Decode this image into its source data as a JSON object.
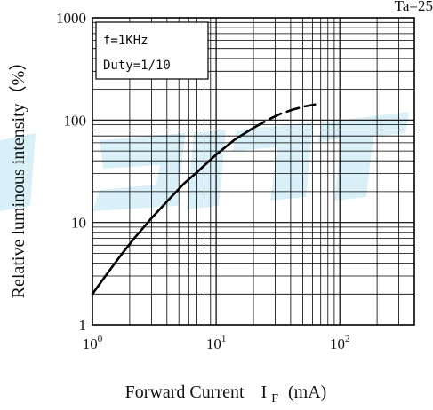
{
  "chart_data": {
    "type": "line",
    "corner_label": "Ta=25",
    "xlabel": "Forward Current",
    "xlabel_symbol": "I",
    "xlabel_subscript": "F",
    "xlabel_unit": "(mA)",
    "ylabel": "Relative luminous intensity（%）",
    "x_scale": "log",
    "y_scale": "log",
    "xlim": [
      1,
      400
    ],
    "ylim": [
      1,
      1000
    ],
    "x_ticks": [
      {
        "value": 1,
        "base": "10",
        "exp": "0"
      },
      {
        "value": 10,
        "base": "10",
        "exp": "1"
      },
      {
        "value": 100,
        "base": "10",
        "exp": "2"
      }
    ],
    "y_ticks": [
      {
        "value": 1,
        "label": "1"
      },
      {
        "value": 10,
        "label": "10"
      },
      {
        "value": 100,
        "label": "100"
      },
      {
        "value": 1000,
        "label": "1000"
      }
    ],
    "grid": true,
    "annotation_lines": [
      "f=1KHz",
      "Duty=1/10"
    ],
    "series": [
      {
        "style": "solid",
        "x": [
          1,
          1.3,
          1.7,
          2.2,
          3,
          4,
          5.5,
          7,
          10,
          14,
          20
        ],
        "y": [
          2,
          3.1,
          4.8,
          7.1,
          11,
          16,
          24,
          31,
          46,
          64,
          84
        ]
      },
      {
        "style": "dashed",
        "x": [
          20,
          26,
          33,
          42,
          52,
          63
        ],
        "y": [
          84,
          100,
          115,
          127,
          136,
          142
        ]
      }
    ]
  }
}
